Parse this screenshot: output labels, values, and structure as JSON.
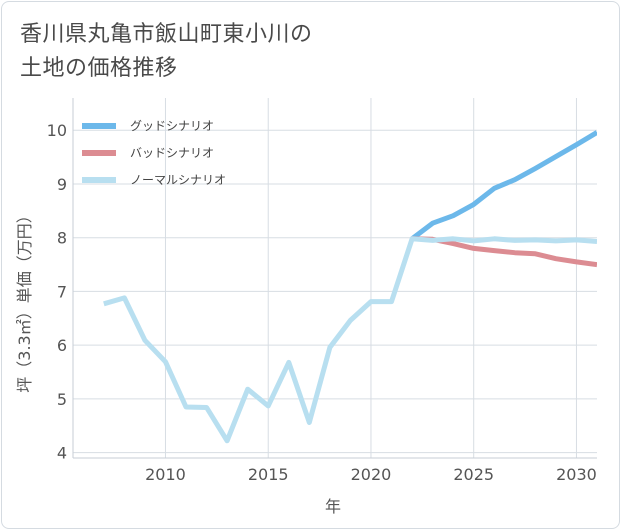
{
  "chart_data": {
    "type": "line",
    "title": "香川県丸亀市飯山町東小川の\n土地の価格推移",
    "xlabel": "年",
    "ylabel": "坪（3.3㎡）単価（万円）",
    "xlim": [
      2005.5,
      2031
    ],
    "ylim": [
      3.9,
      10.6
    ],
    "x_ticks": [
      2010,
      2015,
      2020,
      2025,
      2030
    ],
    "y_ticks": [
      4,
      5,
      6,
      7,
      8,
      9,
      10
    ],
    "grid": true,
    "legend_position": "top-left",
    "series": [
      {
        "name": "グッドシナリオ",
        "color": "#6cb8ea",
        "x": [
          2022,
          2023,
          2024,
          2025,
          2026,
          2027,
          2028,
          2029,
          2030,
          2031
        ],
        "values": [
          7.98,
          8.27,
          8.41,
          8.62,
          8.92,
          9.08,
          9.29,
          9.51,
          9.73,
          9.96
        ]
      },
      {
        "name": "バッドシナリオ",
        "color": "#dc8c92",
        "x": [
          2022,
          2023,
          2024,
          2025,
          2026,
          2027,
          2028,
          2029,
          2030,
          2031
        ],
        "values": [
          7.98,
          7.97,
          7.89,
          7.8,
          7.76,
          7.72,
          7.7,
          7.61,
          7.55,
          7.5
        ]
      },
      {
        "name": "ノーマルシナリオ",
        "color": "#b8dff0",
        "x": [
          2007,
          2008,
          2009,
          2010,
          2011,
          2012,
          2013,
          2014,
          2015,
          2016,
          2017,
          2018,
          2019,
          2020,
          2021,
          2022,
          2023,
          2024,
          2025,
          2026,
          2027,
          2028,
          2029,
          2030,
          2031
        ],
        "values": [
          6.77,
          6.88,
          6.09,
          5.69,
          4.85,
          4.84,
          4.22,
          5.18,
          4.87,
          5.68,
          4.56,
          5.96,
          6.46,
          6.81,
          6.81,
          7.98,
          7.95,
          7.98,
          7.94,
          7.98,
          7.95,
          7.96,
          7.94,
          7.96,
          7.93
        ]
      }
    ]
  }
}
